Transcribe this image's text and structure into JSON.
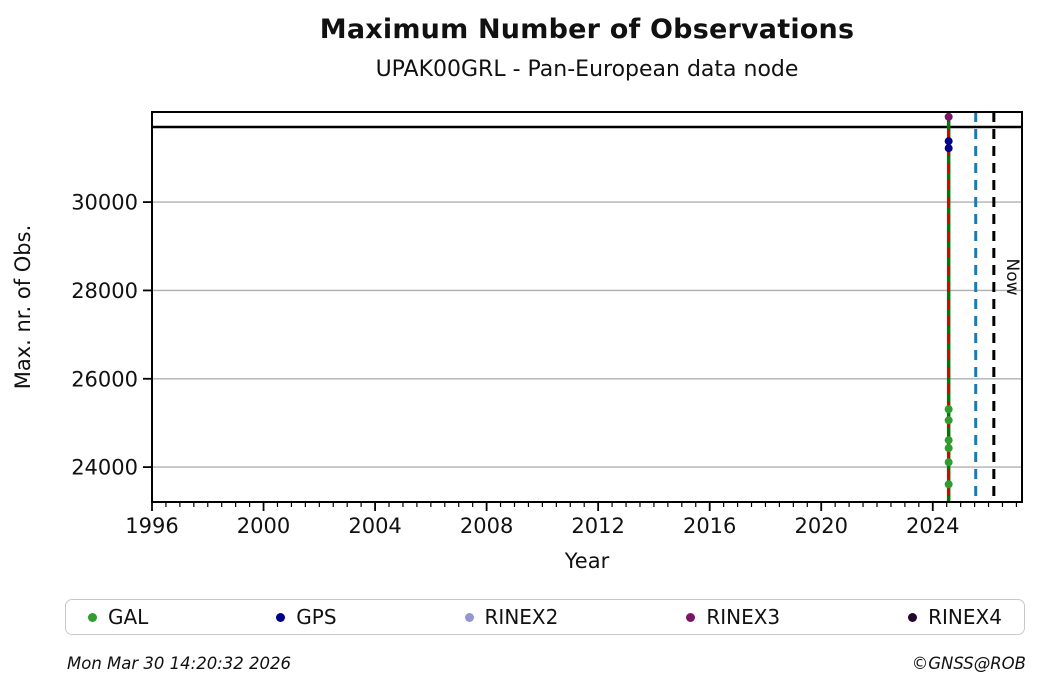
{
  "page": {
    "footer": {
      "timestamp": "Mon Mar 30 14:20:32 2026",
      "copyright": "©GNSS@ROB"
    }
  },
  "chart_data": {
    "type": "scatter",
    "title": "Maximum Number of Observations",
    "subtitle": "UPAK00GRL - Pan-European data node",
    "xlabel": "Year",
    "ylabel": "Max. nr. of Obs.",
    "xlim": [
      1996,
      2027.2
    ],
    "ylim": [
      23210,
      32040
    ],
    "x_major_ticks": [
      1996,
      2000,
      2004,
      2008,
      2012,
      2016,
      2020,
      2024
    ],
    "x_minor_step": 0.5,
    "y_ticks": [
      24000,
      26000,
      28000,
      30000
    ],
    "grid": "horizontal-only",
    "grid_color": "#b0b0b0",
    "legend_position": "bottom",
    "series": [
      {
        "name": "GAL",
        "color": "#2e9e2e",
        "points": [
          {
            "x": 2024.57,
            "y": 25310
          },
          {
            "x": 2024.57,
            "y": 25060
          },
          {
            "x": 2024.57,
            "y": 24610
          },
          {
            "x": 2024.57,
            "y": 24430
          },
          {
            "x": 2024.57,
            "y": 24110
          },
          {
            "x": 2024.57,
            "y": 23610
          }
        ]
      },
      {
        "name": "GPS",
        "color": "#00008b",
        "points": [
          {
            "x": 2024.57,
            "y": 31380
          },
          {
            "x": 2024.57,
            "y": 31220
          }
        ]
      },
      {
        "name": "RINEX2",
        "color": "#9595d2",
        "points": []
      },
      {
        "name": "RINEX3",
        "color": "#7b1566",
        "points": [
          {
            "x": 2024.57,
            "y": 31930
          }
        ]
      },
      {
        "name": "RINEX4",
        "color": "#26062e",
        "points": []
      }
    ],
    "vlines": [
      {
        "x": 2024.57,
        "style": "solid",
        "color": "#007a00",
        "width": 3.5,
        "name": "data-start-line-green"
      },
      {
        "x": 2024.57,
        "style": "dashed",
        "color": "#dd0000",
        "width": 2.5,
        "name": "event-line-red-dashed"
      },
      {
        "x": 2025.54,
        "style": "dashed",
        "color": "#1f77b4",
        "width": 3,
        "name": "event-line-blue-dashed"
      },
      {
        "x": 2026.19,
        "style": "dashed",
        "color": "#000000",
        "width": 3,
        "name": "now-line",
        "label": "Now"
      }
    ],
    "hlines": [
      {
        "y": 31700,
        "color": "#000000",
        "width": 2.5,
        "name": "max-obs-line"
      }
    ]
  }
}
